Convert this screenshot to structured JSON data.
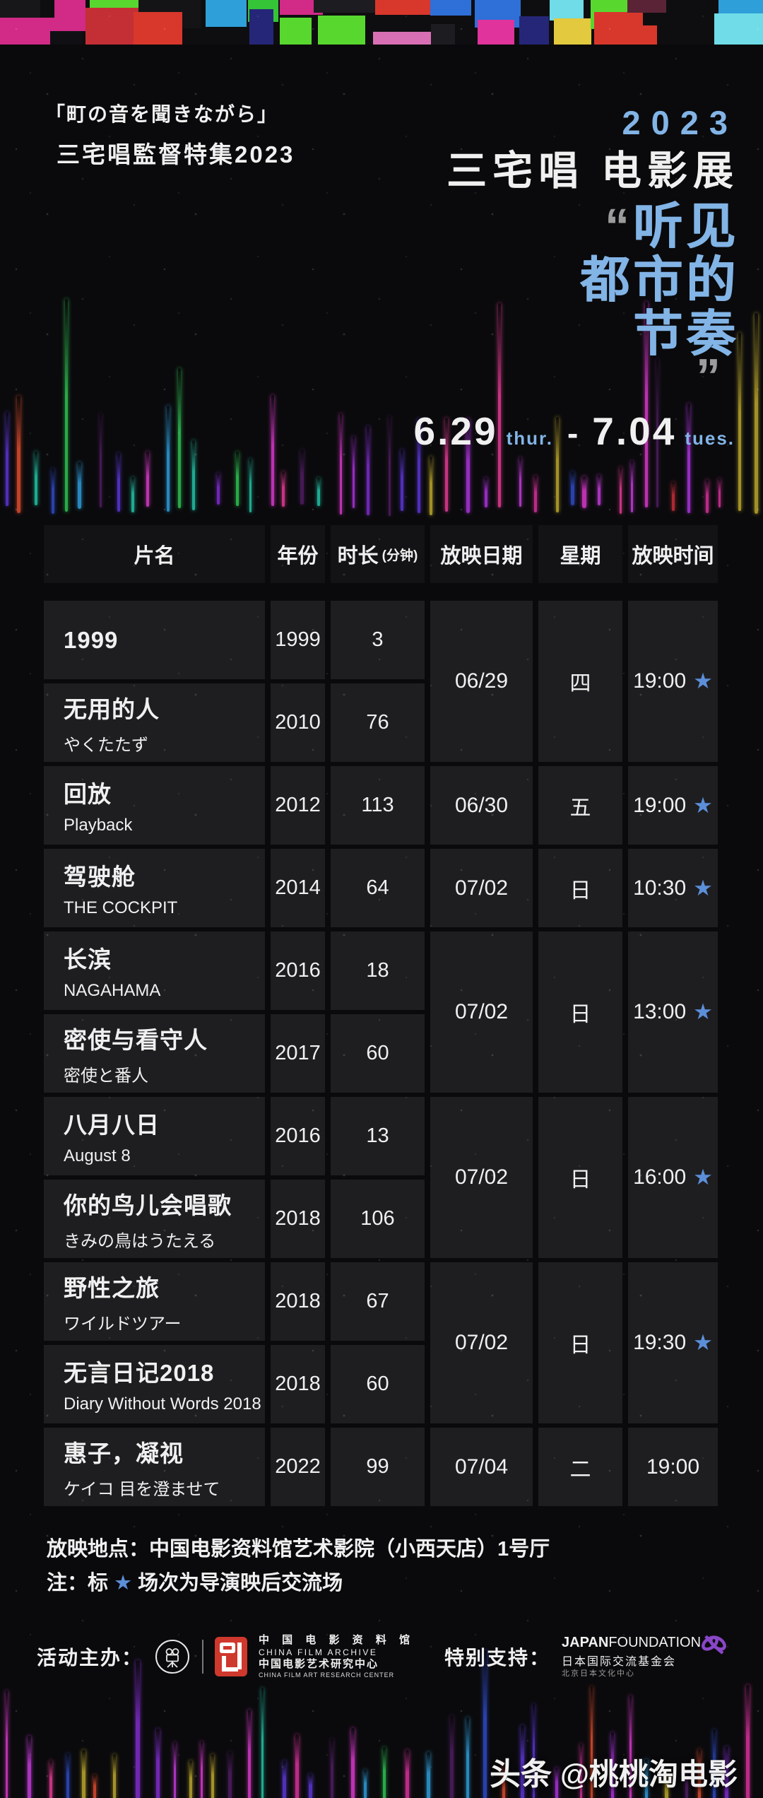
{
  "page": {
    "bg": "#0a0a0c",
    "accent_blue": "#82b4e6",
    "star_blue": "#5c8fd9"
  },
  "header": {
    "subtitle_jp_line1": "「町の音を聞きながら」",
    "subtitle_jp_line2": "三宅唱監督特集2023",
    "year_label": "2023",
    "title_cn": "三宅唱 电影展",
    "quote_open": "“",
    "slogan_lines": [
      "听见",
      "都市的",
      "节奏"
    ],
    "quote_close": "”",
    "date_start": "6.29",
    "date_start_day": "thur.",
    "date_separator": "-",
    "date_end": "7.04",
    "date_end_day": "tues."
  },
  "table": {
    "headers": [
      {
        "label": "片名"
      },
      {
        "label": "年份"
      },
      {
        "label": "时长",
        "sub": "(分钟)"
      },
      {
        "label": "放映日期"
      },
      {
        "label": "星期"
      },
      {
        "label": "放映时间"
      }
    ],
    "films": [
      {
        "title": "1999",
        "subtitle": "",
        "year": "1999",
        "duration": "3"
      },
      {
        "title": "无用的人",
        "subtitle": "やくたたず",
        "year": "2010",
        "duration": "76"
      },
      {
        "title": "回放",
        "subtitle": "Playback",
        "year": "2012",
        "duration": "113"
      },
      {
        "title": "驾驶舱",
        "subtitle": "THE COCKPIT",
        "year": "2014",
        "duration": "64"
      },
      {
        "title": "长滨",
        "subtitle": "NAGAHAMA",
        "year": "2016",
        "duration": "18"
      },
      {
        "title": "密使与看守人",
        "subtitle": "密使と番人",
        "year": "2017",
        "duration": "60"
      },
      {
        "title": "八月八日",
        "subtitle": "August 8",
        "year": "2016",
        "duration": "13"
      },
      {
        "title": "你的鸟儿会唱歌",
        "subtitle": "きみの鳥はうたえる",
        "year": "2018",
        "duration": "106"
      },
      {
        "title": "野性之旅",
        "subtitle": "ワイルドツアー",
        "year": "2018",
        "duration": "67"
      },
      {
        "title": "无言日记2018",
        "subtitle": "Diary Without Words 2018",
        "year": "2018",
        "duration": "60"
      },
      {
        "title": "惠子，凝视",
        "subtitle": "ケイコ 目を澄ませて",
        "year": "2022",
        "duration": "99"
      }
    ],
    "screenings": [
      {
        "date": "06/29",
        "weekday": "四",
        "time": "19:00",
        "star": true,
        "start": 0,
        "span": 2
      },
      {
        "date": "06/30",
        "weekday": "五",
        "time": "19:00",
        "star": true,
        "start": 2,
        "span": 1
      },
      {
        "date": "07/02",
        "weekday": "日",
        "time": "10:30",
        "star": true,
        "start": 3,
        "span": 1
      },
      {
        "date": "07/02",
        "weekday": "日",
        "time": "13:00",
        "star": true,
        "start": 4,
        "span": 2
      },
      {
        "date": "07/02",
        "weekday": "日",
        "time": "16:00",
        "star": true,
        "start": 6,
        "span": 2
      },
      {
        "date": "07/02",
        "weekday": "日",
        "time": "19:30",
        "star": true,
        "start": 8,
        "span": 2
      },
      {
        "date": "07/04",
        "weekday": "二",
        "time": "19:00",
        "star": false,
        "start": 10,
        "span": 1
      }
    ],
    "star_glyph": "★"
  },
  "notes": {
    "venue": "放映地点：中国电影资料馆艺术影院（小西天店）1号厅",
    "note_prefix": "注：标",
    "note_star": "★",
    "note_suffix": "场次为导演映后交流场"
  },
  "footer": {
    "organizer_label": "活动主办：",
    "organizer_lines": [
      "中 国 电 影 资 料 馆",
      "CHINA FILM ARCHIVE",
      "中国电影艺术研究中心",
      "CHINA FILM ART RESEARCH CENTER"
    ],
    "supporter_label": "特别支持：",
    "supporter_name_bold": "JAPAN",
    "supporter_name_rest": "FOUNDATION",
    "supporter_line2": "日本国际交流基金会",
    "supporter_line3": "北京日本文化中心"
  },
  "watermark": {
    "brand": "头条",
    "handle": "@桃桃淘电影"
  },
  "decor": {
    "glitch_palette": [
      "#e0339b",
      "#d12a87",
      "#c32f35",
      "#d8372c",
      "#3553b0",
      "#2e6fd8",
      "#2f9fd9",
      "#6fdce8",
      "#35c437",
      "#58d82f",
      "#e3c93e",
      "#23c2a8",
      "#7c2fa6",
      "#5a2436",
      "#262678",
      "#d86fb4",
      "#141416",
      "#1d1d21",
      "#101014",
      "#17171a"
    ],
    "wave_palette": [
      "#d438c8",
      "#a832d8",
      "#7e2cc9",
      "#d3309a",
      "#c22e38",
      "#2e49c0",
      "#2d9ad6",
      "#2ebf52",
      "#23bfa4",
      "#b8a42c",
      "#e03a92",
      "#5a35d0",
      "#d84a2e",
      "#d438c8",
      "#c03ad6",
      "#b03ad866"
    ]
  }
}
